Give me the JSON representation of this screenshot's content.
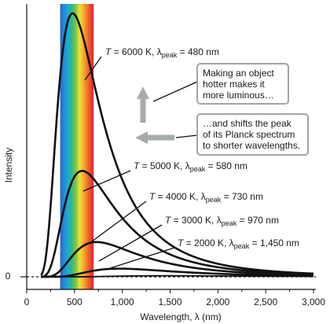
{
  "chart_data": {
    "type": "line",
    "xlabel": "Wavelength, λ (nm)",
    "ylabel": "Intensity",
    "xlim": [
      0,
      3000
    ],
    "x_ticks": [
      "0",
      "500",
      "1,000",
      "1,500",
      "2,000",
      "2,500",
      "3,000"
    ],
    "y_zero_label": "0",
    "visible_band_nm": [
      350,
      700
    ],
    "series": [
      {
        "temperature_K": 6000,
        "peak_nm": 480,
        "peak_value": 1.0,
        "line_style": "solid"
      },
      {
        "temperature_K": 5000,
        "peak_nm": 580,
        "peak_value": 0.402,
        "line_style": "solid"
      },
      {
        "temperature_K": 4000,
        "peak_nm": 730,
        "peak_value": 0.132,
        "line_style": "solid"
      },
      {
        "temperature_K": 3000,
        "peak_nm": 970,
        "peak_value": 0.031,
        "line_style": "solid"
      },
      {
        "temperature_K": 2000,
        "peak_nm": 1450,
        "peak_value": 0.004,
        "line_style": "dashed"
      }
    ],
    "curve_labels": [
      {
        "prefix": "T",
        "value": " = 6000 K, λ",
        "sub": "peak",
        "suffix": " = 480 nm"
      },
      {
        "prefix": "T",
        "value": " = 5000 K, λ",
        "sub": "peak",
        "suffix": " = 580 nm"
      },
      {
        "prefix": "T",
        "value": " = 4000 K, λ",
        "sub": "peak",
        "suffix": " = 730 nm"
      },
      {
        "prefix": "T",
        "value": " = 3000 K, λ",
        "sub": "peak",
        "suffix": " = 970 nm"
      },
      {
        "prefix": "T",
        "value": " = 2000 K, λ",
        "sub": "peak",
        "suffix": " = 1,450 nm"
      }
    ],
    "annotations": [
      {
        "lines": [
          "Making an object",
          "hotter makes it",
          "more luminous…"
        ],
        "arrow": "up"
      },
      {
        "lines": [
          "…and shifts the peak",
          "of its Planck spectrum",
          "to shorter wavelengths."
        ],
        "arrow": "left"
      }
    ],
    "colors": {
      "curve": "#111111",
      "callout_border": "#9fa6a6",
      "arrow": "#a6abab"
    }
  }
}
